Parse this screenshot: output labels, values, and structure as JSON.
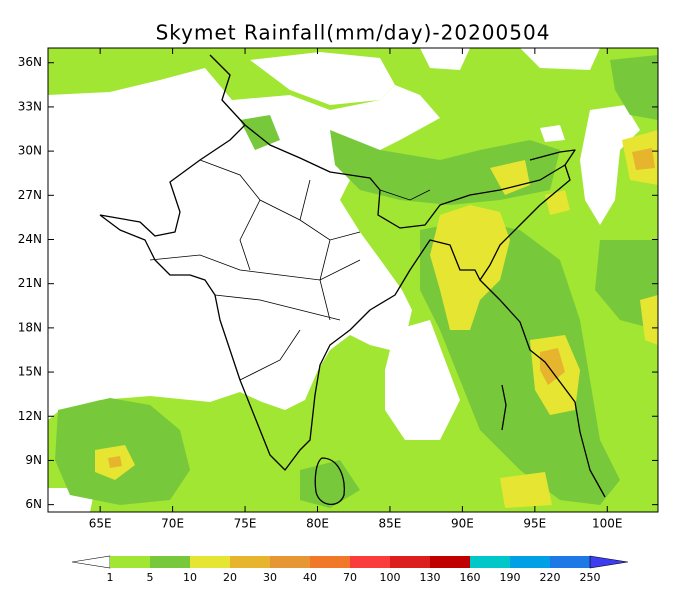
{
  "title": "Skymet Rainfall(mm/day)-20200504",
  "map": {
    "lonlim": [
      61.4,
      103.5
    ],
    "latlim": [
      5.5,
      37
    ],
    "lon_ticks": [
      {
        "value": 65,
        "label": "65E"
      },
      {
        "value": 70,
        "label": "70E"
      },
      {
        "value": 75,
        "label": "75E"
      },
      {
        "value": 80,
        "label": "80E"
      },
      {
        "value": 85,
        "label": "85E"
      },
      {
        "value": 90,
        "label": "90E"
      },
      {
        "value": 95,
        "label": "95E"
      },
      {
        "value": 100,
        "label": "100E"
      }
    ],
    "lat_ticks": [
      {
        "value": 6,
        "label": "6N"
      },
      {
        "value": 9,
        "label": "9N"
      },
      {
        "value": 12,
        "label": "12N"
      },
      {
        "value": 15,
        "label": "15N"
      },
      {
        "value": 18,
        "label": "18N"
      },
      {
        "value": 21,
        "label": "21N"
      },
      {
        "value": 24,
        "label": "24N"
      },
      {
        "value": 27,
        "label": "27N"
      },
      {
        "value": 30,
        "label": "30N"
      },
      {
        "value": 33,
        "label": "33N"
      },
      {
        "value": 36,
        "label": "36N"
      }
    ]
  },
  "colorbar": {
    "levels": [
      1,
      5,
      10,
      20,
      30,
      40,
      70,
      100,
      130,
      160,
      190,
      220,
      250
    ],
    "colors": [
      "#ffffff",
      "#a0e632",
      "#78c83c",
      "#e6e632",
      "#e6b42d",
      "#e69632",
      "#f07828",
      "#fa3c3c",
      "#dc1e1e",
      "#c00000",
      "#00c8c8",
      "#00a0e6",
      "#1e78e6",
      "#3c3cf0"
    ]
  }
}
